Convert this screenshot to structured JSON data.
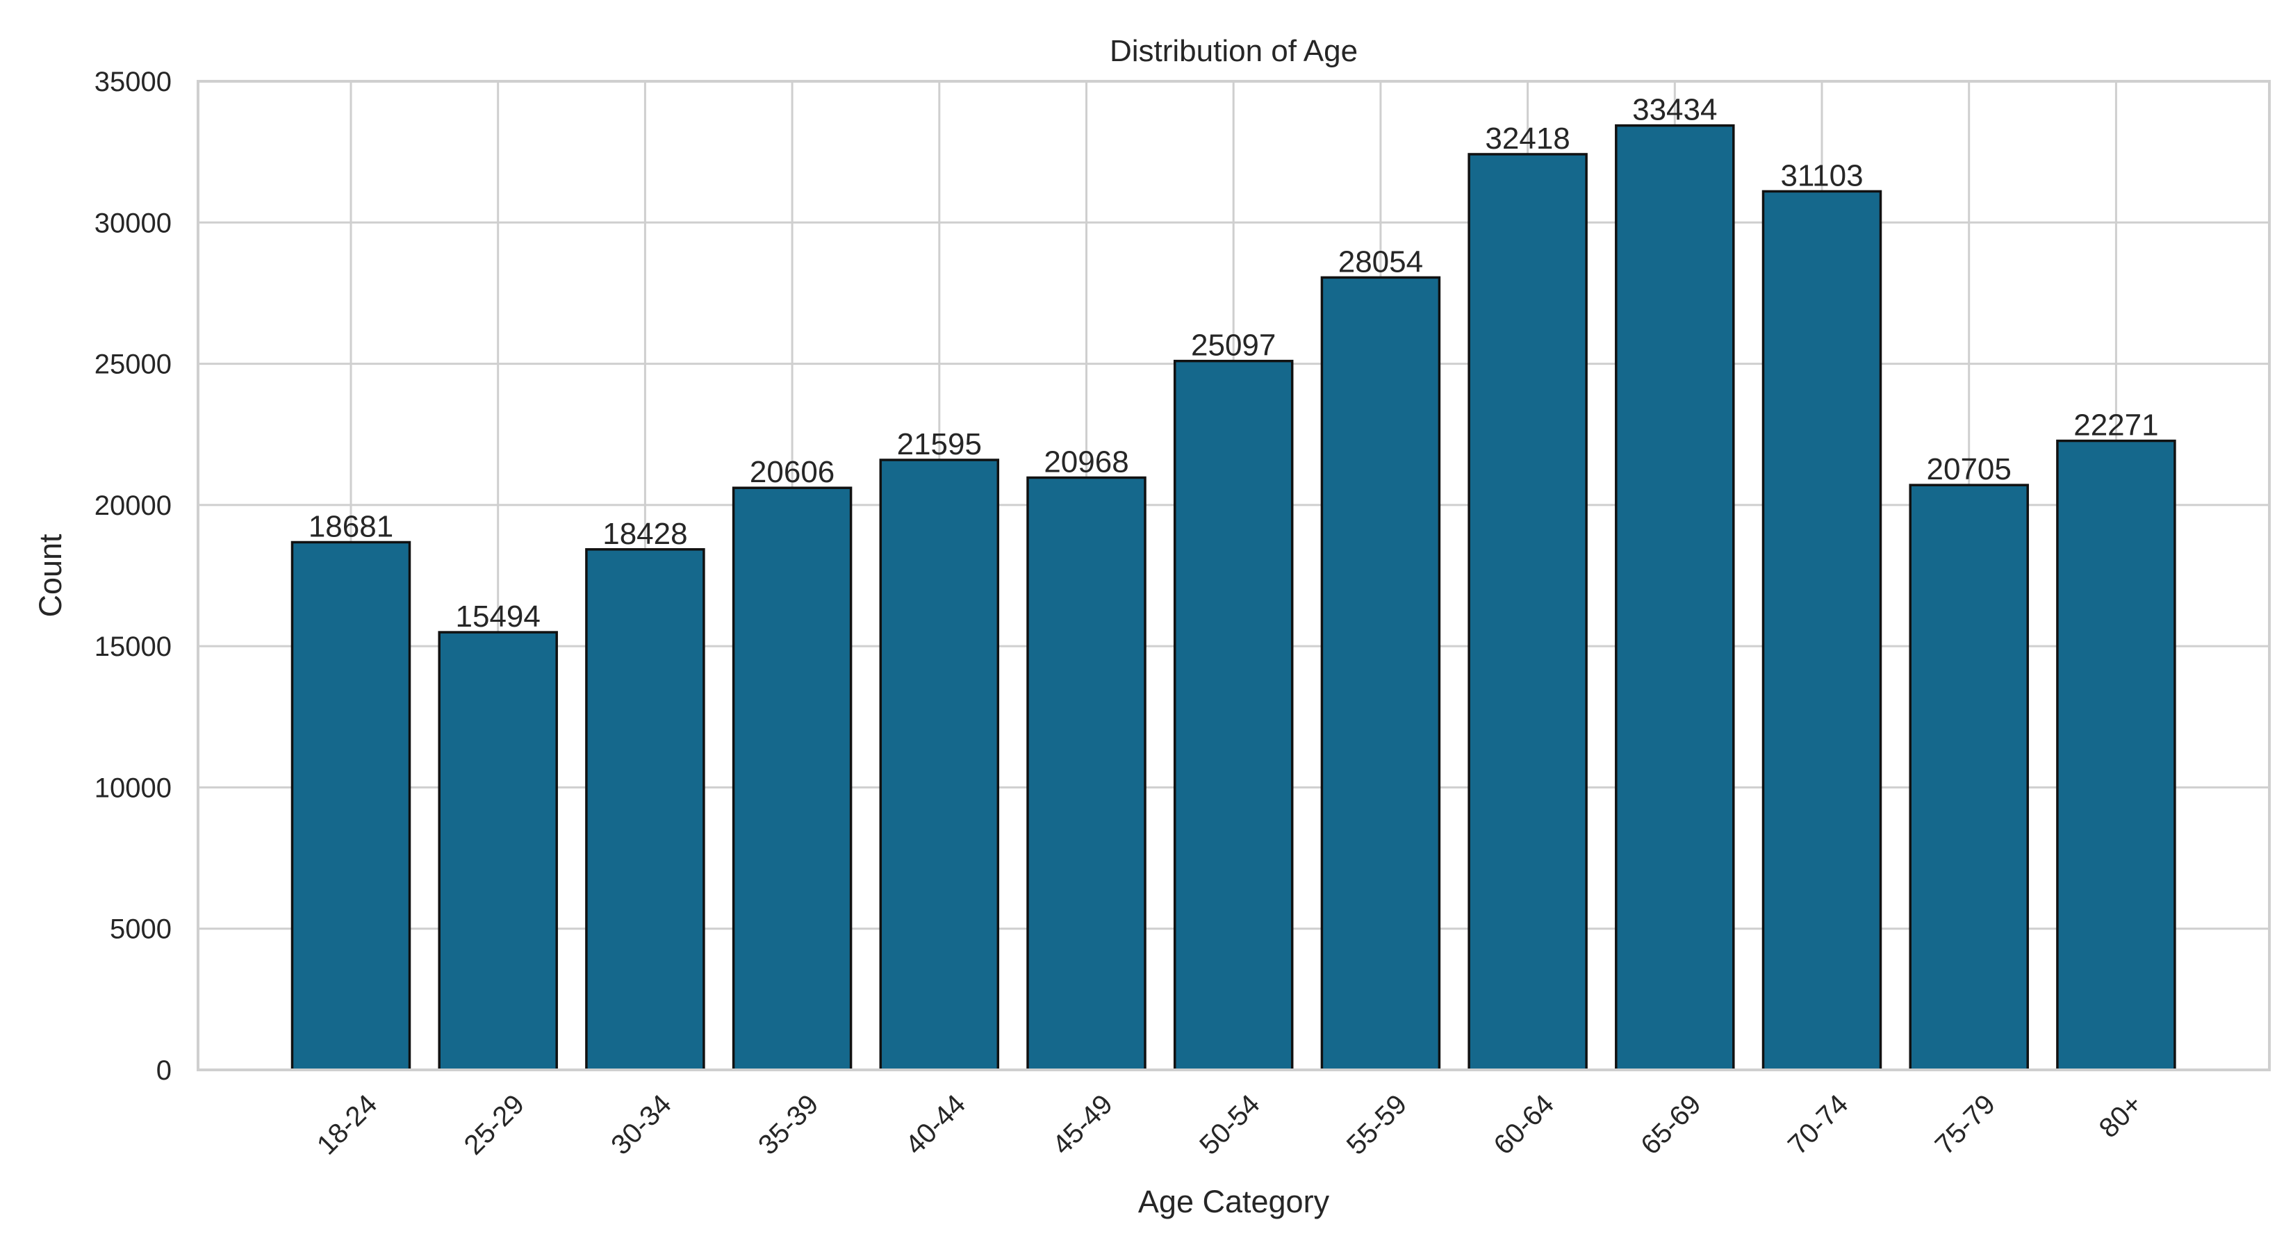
{
  "chart_data": {
    "type": "bar",
    "title": "Distribution of Age",
    "xlabel": "Age Category",
    "ylabel": "Count",
    "categories": [
      "18-24",
      "25-29",
      "30-34",
      "35-39",
      "40-44",
      "45-49",
      "50-54",
      "55-59",
      "60-64",
      "65-69",
      "70-74",
      "75-79",
      "80+"
    ],
    "values": [
      18681,
      15494,
      18428,
      20606,
      21595,
      20968,
      25097,
      28054,
      32418,
      33434,
      31103,
      20705,
      22271
    ],
    "data_labels": [
      "18681",
      "15494",
      "18428",
      "20606",
      "21595",
      "20968",
      "25097",
      "28054",
      "32418",
      "33434",
      "31103",
      "20705",
      "22271"
    ],
    "ylim": [
      0,
      35000
    ],
    "yticks": [
      0,
      5000,
      10000,
      15000,
      20000,
      25000,
      30000,
      35000
    ],
    "ytick_labels": [
      "0",
      "5000",
      "10000",
      "15000",
      "20000",
      "25000",
      "30000",
      "35000"
    ],
    "grid": true,
    "x_tick_rotation": -45,
    "colors": {
      "bar": "#15688c",
      "bar_edge": "#111111",
      "grid": "#cfcfcf",
      "text": "#262626",
      "background": "#ffffff"
    }
  }
}
